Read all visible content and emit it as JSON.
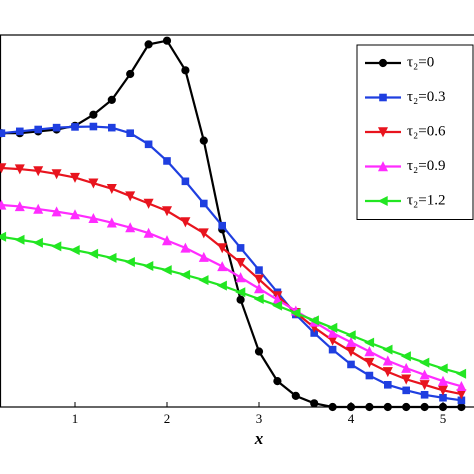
{
  "chart_data": {
    "type": "line",
    "xlabel": "x",
    "x": [
      0.2,
      0.4,
      0.6,
      0.8,
      1.0,
      1.2,
      1.4,
      1.6,
      1.8,
      2.0,
      2.2,
      2.4,
      2.6,
      2.8,
      3.0,
      3.2,
      3.4,
      3.6,
      3.8,
      4.0,
      4.2,
      4.4,
      4.6,
      4.8,
      5.0,
      5.2
    ],
    "xlim": [
      0.185,
      5.34
    ],
    "xticks": [
      1,
      2,
      3,
      4,
      5
    ],
    "ylim": [
      0,
      1
    ],
    "legend": "upper right",
    "series": [
      {
        "name": "τ₂=0",
        "color": "#000000",
        "marker": "circle",
        "values": [
          0.74,
          0.74,
          0.745,
          0.75,
          0.76,
          0.79,
          0.83,
          0.9,
          0.98,
          0.99,
          0.91,
          0.72,
          0.48,
          0.29,
          0.15,
          0.07,
          0.03,
          0.01,
          0.0,
          0,
          0,
          0,
          0,
          0,
          0,
          0
        ]
      },
      {
        "name": "τ₂=0.3",
        "color": "#1f3fe0",
        "marker": "square",
        "values": [
          0.74,
          0.745,
          0.75,
          0.755,
          0.757,
          0.758,
          0.755,
          0.74,
          0.71,
          0.665,
          0.61,
          0.55,
          0.49,
          0.43,
          0.37,
          0.31,
          0.25,
          0.2,
          0.155,
          0.115,
          0.085,
          0.06,
          0.045,
          0.033,
          0.025,
          0.018
        ]
      },
      {
        "name": "τ₂=0.6",
        "color": "#e8141e",
        "marker": "triangle-down",
        "values": [
          0.646,
          0.643,
          0.638,
          0.63,
          0.62,
          0.605,
          0.59,
          0.57,
          0.55,
          0.53,
          0.5,
          0.47,
          0.43,
          0.39,
          0.345,
          0.3,
          0.255,
          0.215,
          0.18,
          0.15,
          0.12,
          0.095,
          0.075,
          0.06,
          0.045,
          0.035
        ]
      },
      {
        "name": "τ₂=0.9",
        "color": "#ff2cff",
        "marker": "triangle-up",
        "values": [
          0.546,
          0.542,
          0.535,
          0.528,
          0.52,
          0.51,
          0.498,
          0.485,
          0.47,
          0.45,
          0.43,
          0.405,
          0.38,
          0.35,
          0.32,
          0.29,
          0.26,
          0.23,
          0.2,
          0.175,
          0.15,
          0.125,
          0.105,
          0.087,
          0.07,
          0.056
        ]
      },
      {
        "name": "τ₂=1.2",
        "color": "#22e622",
        "marker": "triangle-left",
        "values": [
          0.46,
          0.452,
          0.444,
          0.434,
          0.424,
          0.414,
          0.403,
          0.392,
          0.381,
          0.37,
          0.357,
          0.343,
          0.328,
          0.31,
          0.292,
          0.274,
          0.254,
          0.234,
          0.214,
          0.194,
          0.174,
          0.155,
          0.137,
          0.12,
          0.104,
          0.09
        ]
      }
    ]
  }
}
